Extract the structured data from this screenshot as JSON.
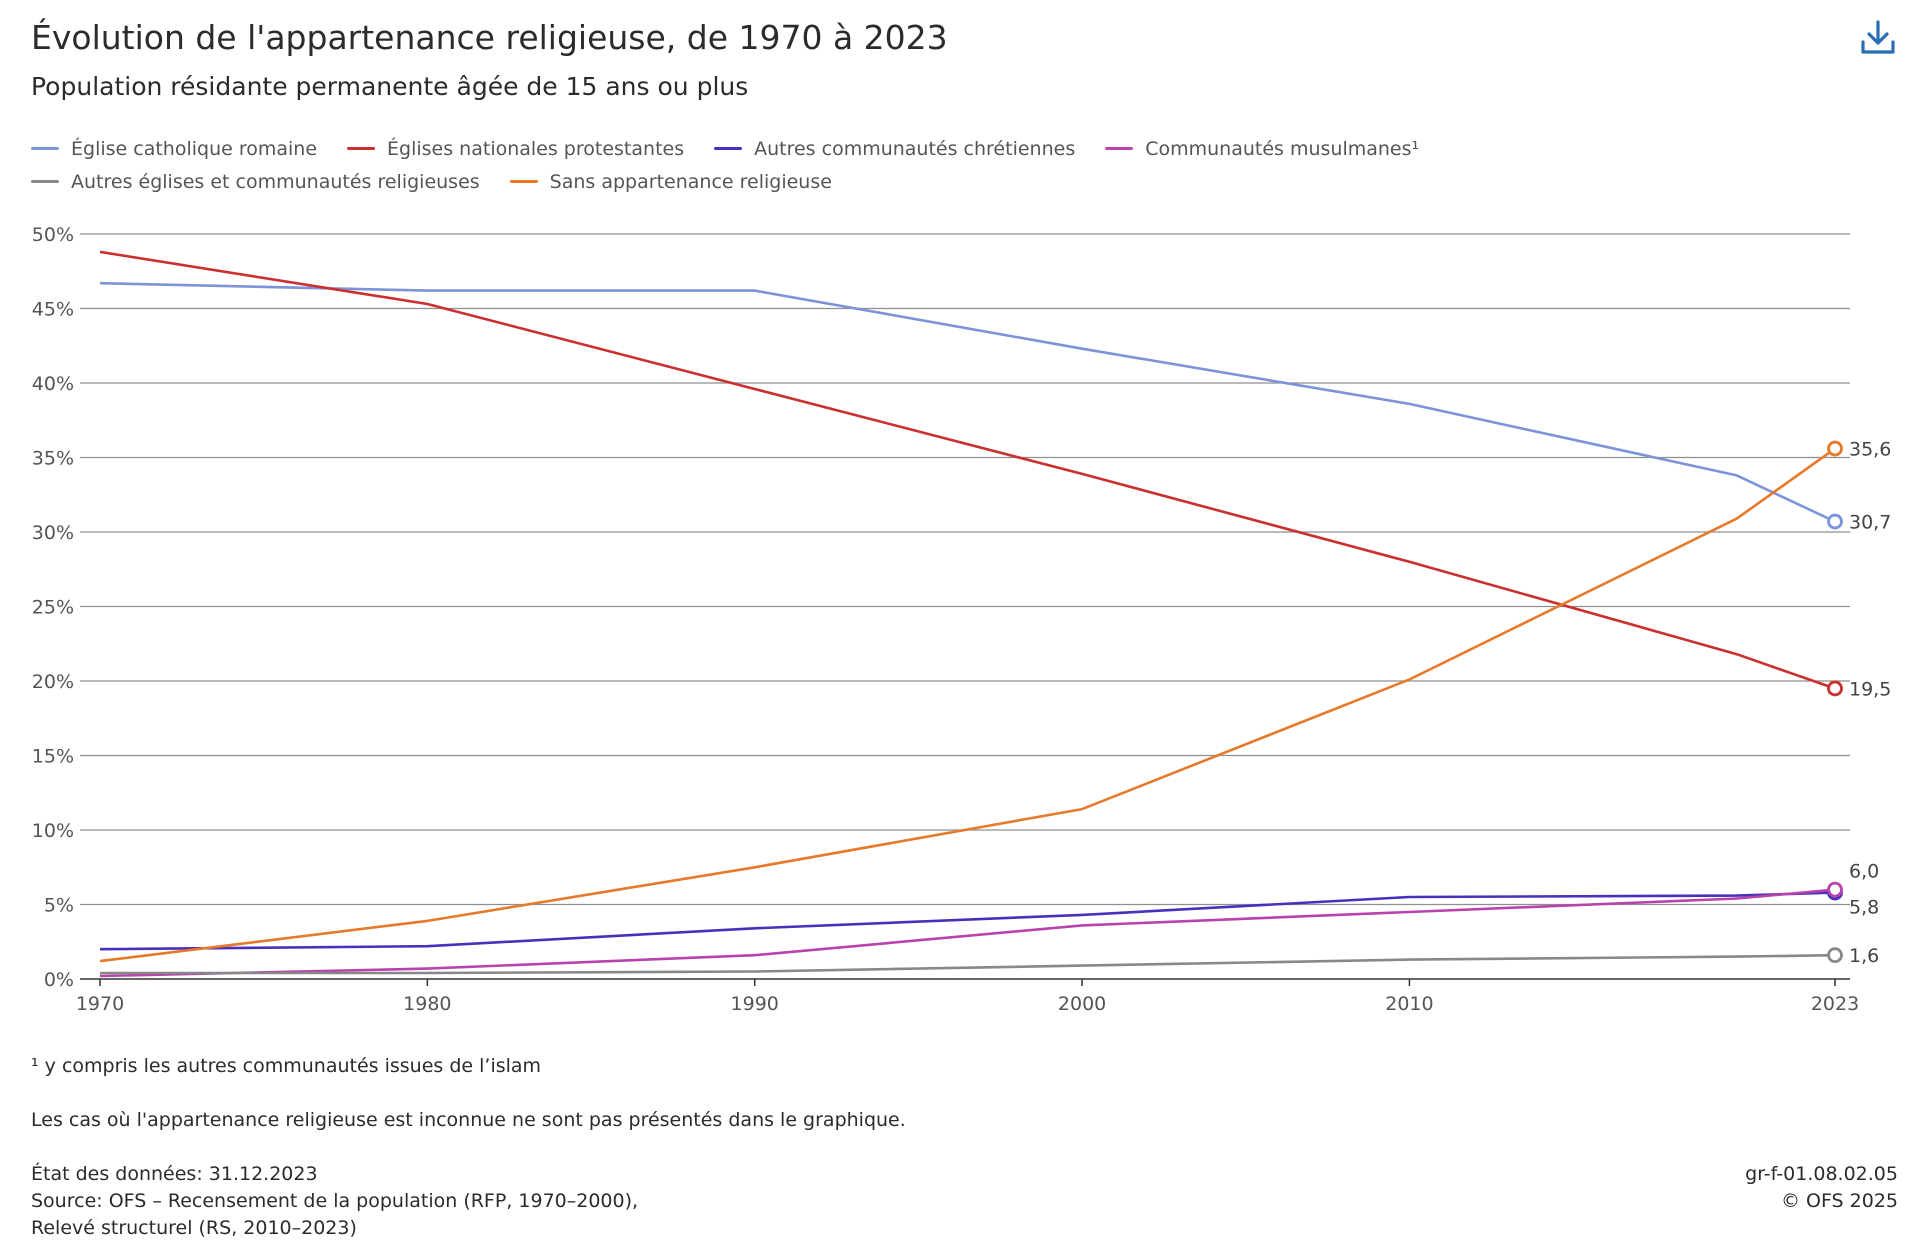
{
  "header": {
    "title": "Évolution de l'appartenance religieuse, de 1970 à 2023",
    "subtitle": "Population résidante permanente âgée de 15 ans ou plus",
    "download_icon": "download-icon"
  },
  "chart_data": {
    "type": "line",
    "title": "Évolution de l'appartenance religieuse, de 1970 à 2023",
    "subtitle": "Population résidante permanente âgée de 15 ans ou plus",
    "x": [
      1970,
      1980,
      1990,
      2000,
      2010,
      2020,
      2023
    ],
    "x_ticks": [
      "1970",
      "1980",
      "1990",
      "2000",
      "2010",
      "2023"
    ],
    "y_ticks": [
      "0%",
      "5%",
      "10%",
      "15%",
      "20%",
      "25%",
      "30%",
      "35%",
      "40%",
      "45%",
      "50%"
    ],
    "ylim": [
      0,
      50
    ],
    "y_unit": "%",
    "grid": true,
    "legend_position": "top-left",
    "series": [
      {
        "name": "Église catholique romaine",
        "color": "#7b93d9",
        "values": [
          46.7,
          46.2,
          46.2,
          42.3,
          38.6,
          33.8,
          30.7
        ],
        "end_label": "30,7"
      },
      {
        "name": "Églises nationales protestantes",
        "color": "#cc2f2f",
        "values": [
          48.8,
          45.3,
          39.6,
          33.9,
          28.0,
          21.8,
          19.5
        ],
        "end_label": "19,5"
      },
      {
        "name": "Autres communautés chrétiennes",
        "color": "#4a2fbf",
        "values": [
          2.0,
          2.2,
          3.4,
          4.3,
          5.5,
          5.6,
          5.8
        ],
        "end_label": "5,8"
      },
      {
        "name": "Communautés musulmanes¹",
        "color": "#b843ad",
        "values": [
          0.2,
          0.7,
          1.6,
          3.6,
          4.5,
          5.4,
          6.0
        ],
        "end_label": "6,0"
      },
      {
        "name": "Autres églises et communautés religieuses",
        "color": "#888888",
        "values": [
          0.4,
          0.4,
          0.5,
          0.9,
          1.3,
          1.5,
          1.6
        ],
        "end_label": "1,6"
      },
      {
        "name": "Sans appartenance religieuse",
        "color": "#e7792b",
        "values": [
          1.2,
          3.9,
          7.5,
          11.4,
          20.1,
          30.9,
          35.6
        ],
        "end_label": "35,6"
      }
    ]
  },
  "footnotes": {
    "islam_note": "¹ y compris les autres communautés issues de l’islam",
    "unknown_note": "Les cas où l'appartenance religieuse est inconnue ne sont pas présentés dans le graphique.",
    "data_state": "État des données: 31.12.2023",
    "source_line1": "Source: OFS – Recensement de la population (RFP, 1970–2000),",
    "source_line2": "Relevé structurel (RS, 2010–2023)",
    "code": "gr-f-01.08.02.05",
    "copyright": "© OFS 2025"
  }
}
